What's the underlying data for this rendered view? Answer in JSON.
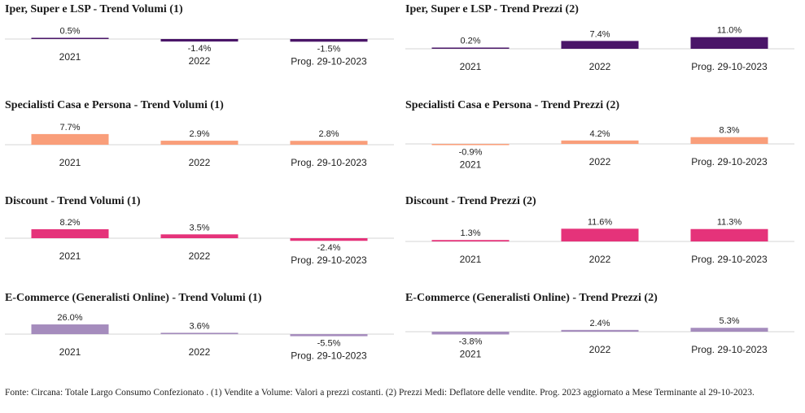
{
  "categories": [
    "2021",
    "2022",
    "Prog. 29-10-2023"
  ],
  "footnote": "Fonte: Circana: Totale Largo Consumo Confezionato . (1) Vendite a Volume: Valori a prezzi costanti. (2) Prezzi Medi: Deflatore delle vendite. Prog. 2023 aggiornato a Mese Terminante al 29-10-2023.",
  "chart_data": [
    {
      "type": "bar",
      "title": "Iper, Super e LSP - Trend Volumi (1)",
      "color": "#4a1668",
      "categories": [
        "2021",
        "2022",
        "Prog. 29-10-2023"
      ],
      "values": [
        0.5,
        -1.4,
        -1.5
      ],
      "labels": [
        "0.5%",
        "-1.4%",
        "-1.5%"
      ]
    },
    {
      "type": "bar",
      "title": "Iper, Super e LSP - Trend Prezzi (2)",
      "color": "#4a1668",
      "categories": [
        "2021",
        "2022",
        "Prog. 29-10-2023"
      ],
      "values": [
        0.2,
        7.4,
        11.0
      ],
      "labels": [
        "0.2%",
        "7.4%",
        "11.0%"
      ]
    },
    {
      "type": "bar",
      "title": "Specialisti Casa e Persona - Trend Volumi (1)",
      "color": "#f99e7a",
      "categories": [
        "2021",
        "2022",
        "Prog. 29-10-2023"
      ],
      "values": [
        7.7,
        2.9,
        2.8
      ],
      "labels": [
        "7.7%",
        "2.9%",
        "2.8%"
      ]
    },
    {
      "type": "bar",
      "title": "Specialisti Casa e Persona - Trend Prezzi (2)",
      "color": "#f99e7a",
      "categories": [
        "2021",
        "2022",
        "Prog. 29-10-2023"
      ],
      "values": [
        -0.9,
        4.2,
        8.3
      ],
      "labels": [
        "-0.9%",
        "4.2%",
        "8.3%"
      ]
    },
    {
      "type": "bar",
      "title": "Discount - Trend Volumi (1)",
      "color": "#e5337a",
      "categories": [
        "2021",
        "2022",
        "Prog. 29-10-2023"
      ],
      "values": [
        8.2,
        3.5,
        -2.4
      ],
      "labels": [
        "8.2%",
        "3.5%",
        "-2.4%"
      ]
    },
    {
      "type": "bar",
      "title": "Discount - Trend Prezzi (2)",
      "color": "#e5337a",
      "categories": [
        "2021",
        "2022",
        "Prog. 29-10-2023"
      ],
      "values": [
        1.3,
        11.6,
        11.3
      ],
      "labels": [
        "1.3%",
        "11.6%",
        "11.3%"
      ]
    },
    {
      "type": "bar",
      "title": "E-Commerce (Generalisti Online) - Trend Volumi (1)",
      "color": "#a58cbd",
      "categories": [
        "2021",
        "2022",
        "Prog. 29-10-2023"
      ],
      "values": [
        26.0,
        3.6,
        -5.5
      ],
      "labels": [
        "26.0%",
        "3.6%",
        "-5.5%"
      ]
    },
    {
      "type": "bar",
      "title": "E-Commerce (Generalisti Online) - Trend Prezzi (2)",
      "color": "#a58cbd",
      "categories": [
        "2021",
        "2022",
        "Prog. 29-10-2023"
      ],
      "values": [
        -3.8,
        2.4,
        5.3
      ],
      "labels": [
        "-3.8%",
        "2.4%",
        "5.3%"
      ]
    }
  ]
}
